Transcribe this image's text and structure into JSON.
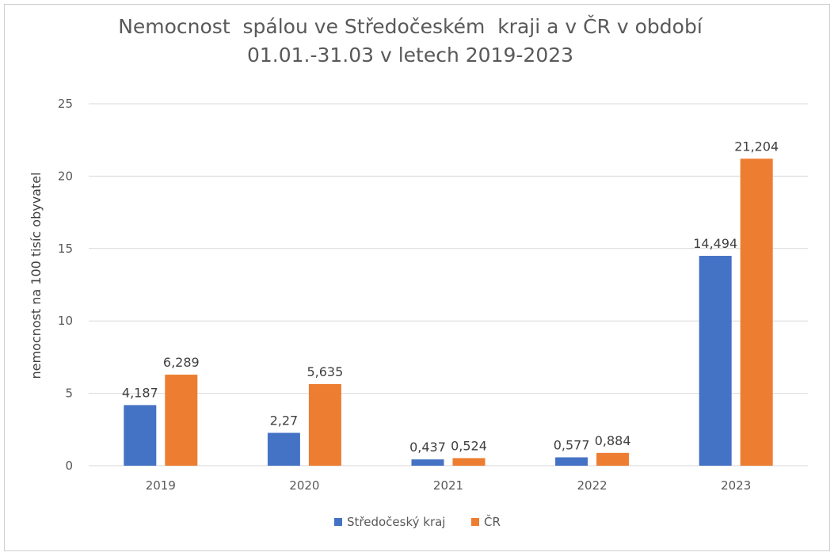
{
  "chart_data": {
    "type": "bar",
    "title_line1": "Nemocnost  spálou ve Středočeském  kraji a v ČR v období",
    "title_line2": "01.01.-31.03 v letech 2019-2023",
    "xlabel": "",
    "ylabel": "nemocnost na 100 tisíc obyvatel",
    "ylim": [
      0,
      25
    ],
    "yticks": [
      0,
      5,
      10,
      15,
      20,
      25
    ],
    "ytick_labels": [
      "0",
      "5",
      "10",
      "15",
      "20",
      "25"
    ],
    "grid": true,
    "legend_position": "bottom",
    "categories": [
      "2019",
      "2020",
      "2021",
      "2022",
      "2023"
    ],
    "series": [
      {
        "name": "Středočeský kraj",
        "color": "#4472c4",
        "values": [
          4.187,
          2.27,
          0.437,
          0.577,
          14.494
        ],
        "labels": [
          "4,187",
          "2,27",
          "0,437",
          "0,577",
          "14,494"
        ]
      },
      {
        "name": "ČR",
        "color": "#ed7d31",
        "values": [
          6.289,
          5.635,
          0.524,
          0.884,
          21.204
        ],
        "labels": [
          "6,289",
          "5,635",
          "0,524",
          "0,884",
          "21,204"
        ]
      }
    ]
  }
}
